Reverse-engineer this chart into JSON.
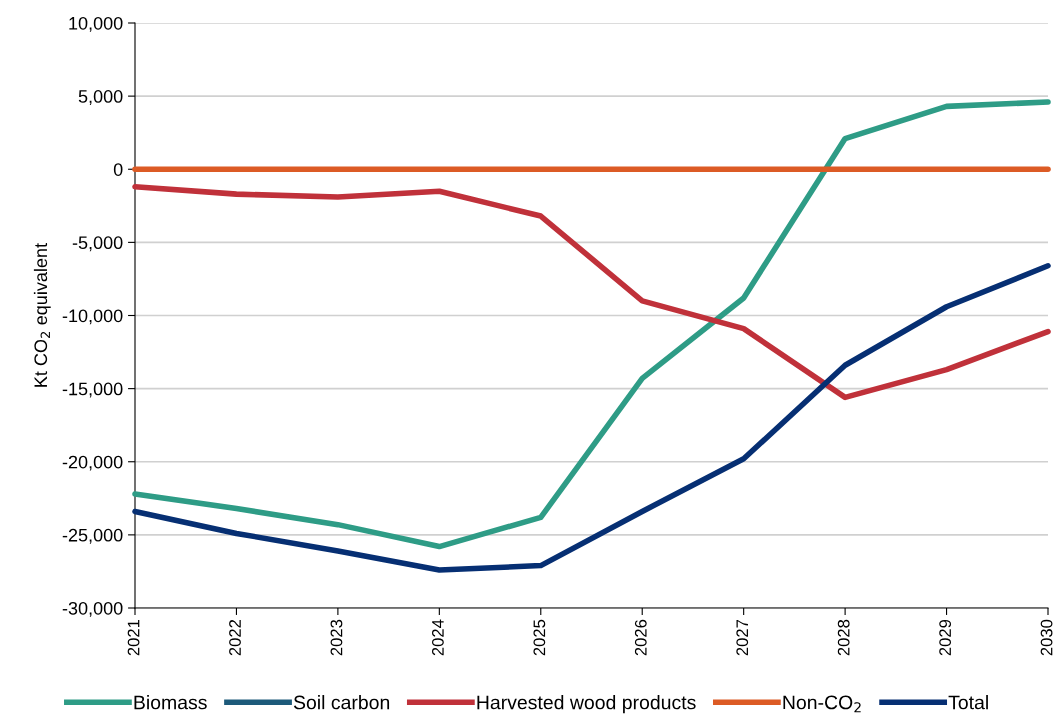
{
  "chart_data": {
    "type": "line",
    "ylabel": "Kt CO$_{2}$ equivalent",
    "categories": [
      "2021",
      "2022",
      "2023",
      "2024",
      "2025",
      "2026",
      "2027",
      "2028",
      "2029",
      "2030"
    ],
    "series": [
      {
        "name": "Biomass",
        "color": "#2e9c86",
        "values": [
          -22200,
          -23200,
          -24300,
          -25800,
          -23800,
          -14300,
          -8800,
          2100,
          4300,
          4600
        ]
      },
      {
        "name": "Soil carbon",
        "color": "#1d5a7a",
        "values": [
          null,
          null,
          null,
          null,
          null,
          null,
          null,
          null,
          null,
          null
        ]
      },
      {
        "name": "Harvested wood products",
        "color": "#c0313a",
        "values": [
          -1200,
          -1700,
          -1900,
          -1500,
          -3200,
          -9000,
          -10900,
          -15600,
          -13700,
          -11100
        ]
      },
      {
        "name": "Non-CO$_{2}$",
        "color": "#dc5b25",
        "values": [
          0,
          0,
          0,
          0,
          0,
          0,
          0,
          0,
          0,
          0
        ]
      },
      {
        "name": "Total",
        "color": "#062f73",
        "values": [
          -23400,
          -24900,
          -26100,
          -27400,
          -27100,
          -23400,
          -19800,
          -13400,
          -9400,
          -6600
        ]
      }
    ],
    "ylim": [
      -30000,
      10000
    ],
    "yticks": [
      {
        "value": -30000,
        "label": "-30,000"
      },
      {
        "value": -25000,
        "label": "-25,000"
      },
      {
        "value": -20000,
        "label": "-20,000"
      },
      {
        "value": -15000,
        "label": "-15,000"
      },
      {
        "value": -10000,
        "label": "-10,000"
      },
      {
        "value": -5000,
        "label": "-5,000"
      },
      0,
      {
        "value": 5000,
        "label": "5,000"
      },
      {
        "value": 10000,
        "label": "10,000"
      }
    ],
    "grid": "y",
    "legend": "bottom",
    "marker": "none",
    "line_style": "solid"
  }
}
